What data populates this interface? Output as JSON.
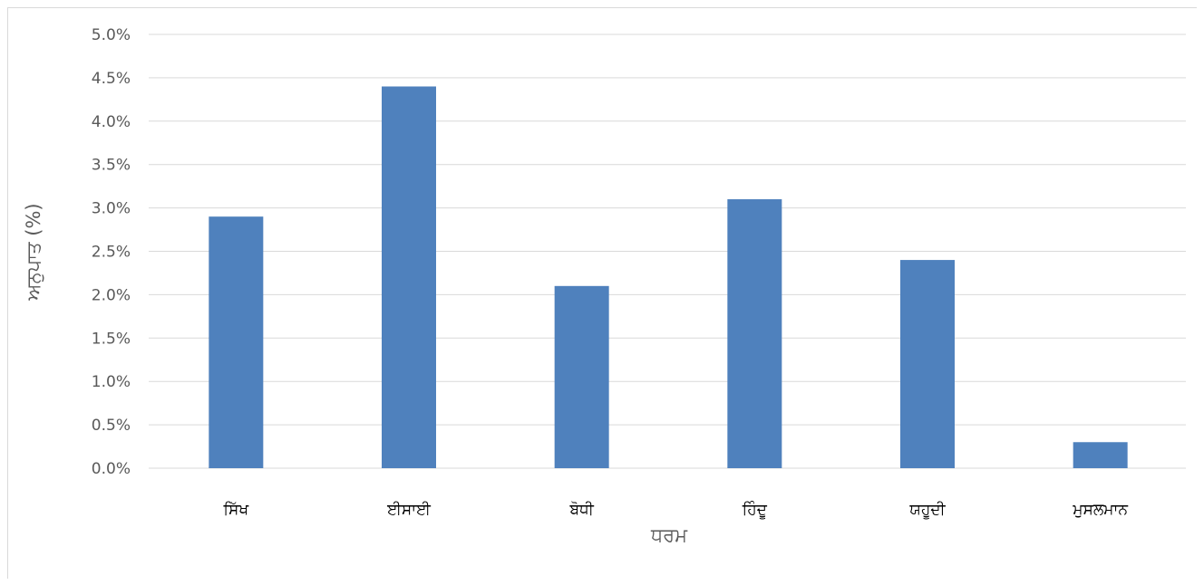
{
  "chart_data": {
    "type": "bar",
    "title": "",
    "xlabel": "ਧਰਮ",
    "ylabel": "ਅਨੁਪਾਤ (%)",
    "categories": [
      "ਸਿੱਖ",
      "ਈਸਾਈ",
      "ਬੋਧੀ",
      "ਹਿੰਦੂ",
      "ਯਹੂਦੀ",
      "ਮੁਸਲਮਾਨ"
    ],
    "values": [
      2.9,
      4.4,
      2.1,
      3.1,
      2.4,
      0.3
    ],
    "ylim": [
      0,
      5.0
    ],
    "yticks": [
      0.0,
      0.5,
      1.0,
      1.5,
      2.0,
      2.5,
      3.0,
      3.5,
      4.0,
      4.5,
      5.0
    ],
    "ytick_labels": [
      "0.0%",
      "0.5%",
      "1.0%",
      "1.5%",
      "2.0%",
      "2.5%",
      "3.0%",
      "3.5%",
      "4.0%",
      "4.5%",
      "5.0%"
    ],
    "grid": true,
    "legend": "none",
    "bar_color": "#4f81bd",
    "grid_color": "#d9d9d9"
  }
}
